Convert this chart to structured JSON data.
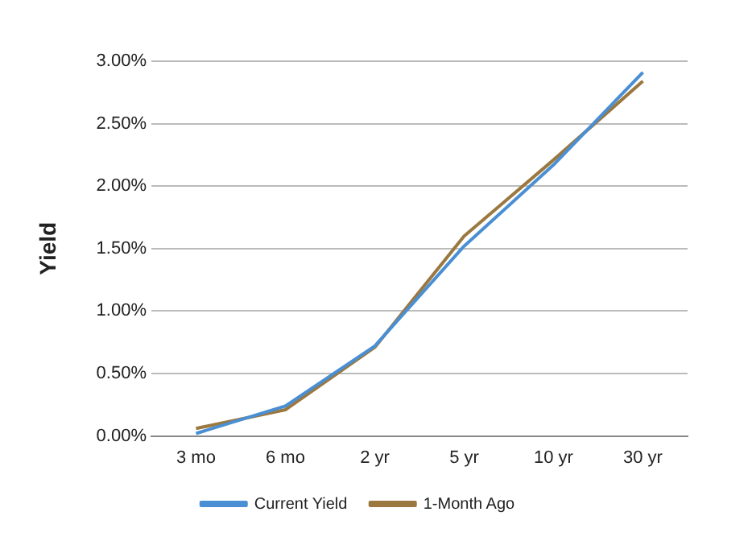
{
  "chart_data": {
    "type": "line",
    "ylabel": "Yield",
    "categories": [
      "3 mo",
      "6 mo",
      "2 yr",
      "5 yr",
      "10 yr",
      "30 yr"
    ],
    "series": [
      {
        "name": "Current Yield",
        "color": "#4a8fd4",
        "values": [
          0.02,
          0.24,
          0.72,
          1.52,
          2.17,
          2.91
        ]
      },
      {
        "name": "1-Month Ago",
        "color": "#9a7840",
        "values": [
          0.06,
          0.21,
          0.71,
          1.6,
          2.21,
          2.84
        ]
      }
    ],
    "ylim": [
      0,
      3
    ],
    "yticks": [
      {
        "value": 0,
        "label": "0.00%"
      },
      {
        "value": 0.5,
        "label": "0.50%"
      },
      {
        "value": 1,
        "label": "1.00%"
      },
      {
        "value": 1.5,
        "label": "1.50%"
      },
      {
        "value": 2,
        "label": "2.00%"
      },
      {
        "value": 2.5,
        "label": "2.50%"
      },
      {
        "value": 3,
        "label": "3.00%"
      }
    ],
    "grid": "y",
    "legend": "bottom",
    "marker": "none",
    "line_style": "solid"
  }
}
